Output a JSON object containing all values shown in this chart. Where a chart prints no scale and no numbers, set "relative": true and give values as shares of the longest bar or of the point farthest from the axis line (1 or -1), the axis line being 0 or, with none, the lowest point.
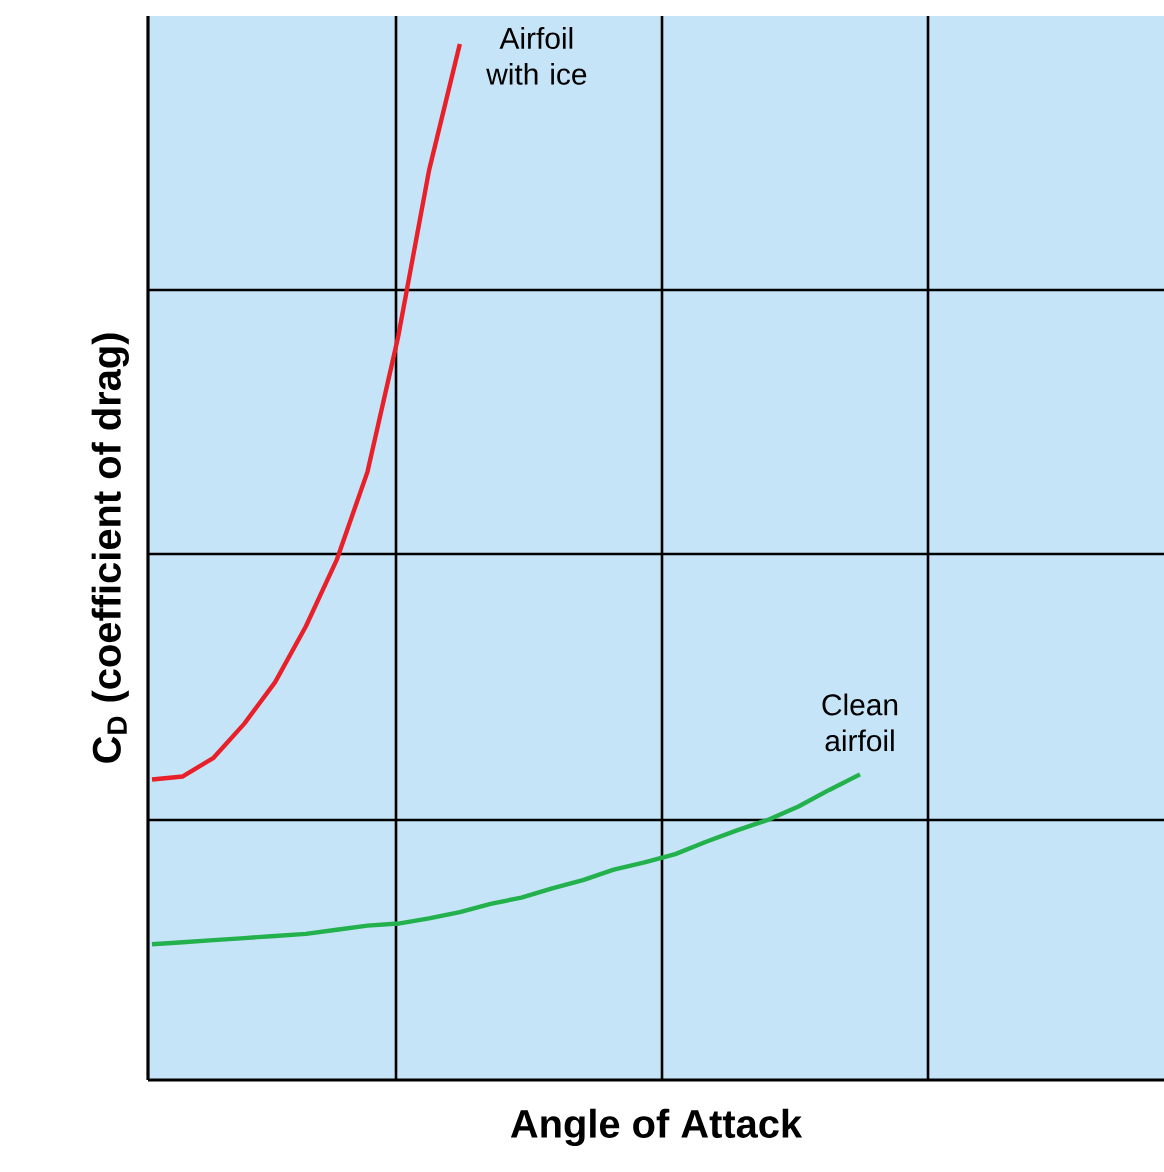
{
  "chart_data": {
    "type": "line",
    "relative": true,
    "xlabel": "Angle of Attack",
    "ylabel": "C$_{D}$ (coefficient of drag)",
    "grid": true,
    "categories": [
      null,
      null,
      null,
      null,
      null,
      null,
      null,
      null,
      null,
      null,
      null,
      null,
      null,
      null,
      null,
      null,
      null,
      null,
      null,
      null,
      null,
      null,
      null,
      null
    ],
    "series": [
      {
        "name": "Airfoil with ice",
        "color": "#e8202a",
        "values": [
          0.29,
          0.293,
          0.311,
          0.344,
          0.384,
          0.438,
          0.502,
          0.587,
          0.718,
          0.878,
          1.0,
          null,
          null,
          null,
          null,
          null,
          null,
          null,
          null,
          null,
          null,
          null,
          null,
          null
        ]
      },
      {
        "name": "Clean airfoil",
        "color": "#22b14c",
        "values": [
          0.131,
          0.133,
          0.135,
          0.137,
          0.139,
          0.141,
          0.145,
          0.149,
          0.151,
          0.156,
          0.162,
          0.17,
          0.176,
          0.185,
          0.193,
          0.203,
          0.21,
          0.218,
          0.23,
          0.241,
          0.251,
          0.264,
          0.28,
          0.295
        ]
      }
    ]
  }
}
